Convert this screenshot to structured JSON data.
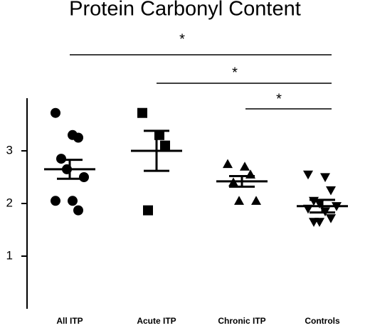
{
  "chart_data": {
    "type": "dot",
    "title": "Protein Carbonyl Content",
    "categories": [
      "All ITP",
      "Acute ITP",
      "Chronic  ITP",
      "Controls"
    ],
    "markers": [
      "circle",
      "square",
      "triangle",
      "triangle-down"
    ],
    "color": "#000000",
    "points": [
      [
        3.72,
        3.3,
        3.25,
        2.85,
        2.65,
        2.5,
        2.05,
        2.05,
        1.87
      ],
      [
        3.72,
        3.3,
        3.1,
        1.87
      ],
      [
        2.75,
        2.7,
        2.55,
        2.4,
        2.05,
        2.05
      ],
      [
        2.55,
        2.5,
        2.25,
        2.05,
        2.0,
        1.95,
        1.9,
        1.85,
        1.72,
        1.65,
        1.65
      ]
    ],
    "means": [
      2.65,
      3.0,
      2.42,
      1.95
    ],
    "errors": [
      0.18,
      0.38,
      0.1,
      0.12
    ],
    "ylim": [
      0,
      4
    ],
    "yticks": [
      1,
      2,
      3
    ],
    "annotations": [
      "*",
      "*",
      "*"
    ]
  }
}
